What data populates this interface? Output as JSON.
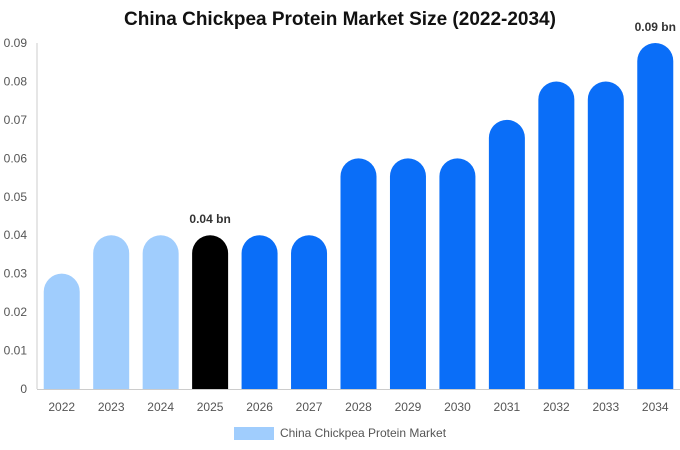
{
  "chart_data": {
    "type": "bar",
    "title": "China Chickpea Protein Market Size (2022-2034)",
    "categories": [
      "2022",
      "2023",
      "2024",
      "2025",
      "2026",
      "2027",
      "2028",
      "2029",
      "2030",
      "2031",
      "2032",
      "2033",
      "2034"
    ],
    "series": [
      {
        "name": "China Chickpea Protein Market",
        "values": [
          0.03,
          0.04,
          0.04,
          0.04,
          0.04,
          0.04,
          0.06,
          0.06,
          0.06,
          0.07,
          0.08,
          0.08,
          0.09
        ]
      }
    ],
    "bar_colors": [
      "#a0cdfd",
      "#a0cdfd",
      "#a0cdfd",
      "#000000",
      "#0a6ef8",
      "#0a6ef8",
      "#0a6ef8",
      "#0a6ef8",
      "#0a6ef8",
      "#0a6ef8",
      "#0a6ef8",
      "#0a6ef8",
      "#0a6ef8"
    ],
    "legend_color": "#a0cdfd",
    "y_ticks": [
      "0",
      "0.01",
      "0.02",
      "0.03",
      "0.04",
      "0.05",
      "0.06",
      "0.07",
      "0.08",
      "0.09"
    ],
    "ylim": [
      0,
      0.09
    ],
    "data_labels": [
      {
        "category": "2025",
        "text": "0.04 bn"
      },
      {
        "category": "2034",
        "text": "0.09 bn"
      }
    ],
    "xlabel": "",
    "ylabel": "",
    "grid": false,
    "legend_position": "bottom-center"
  }
}
